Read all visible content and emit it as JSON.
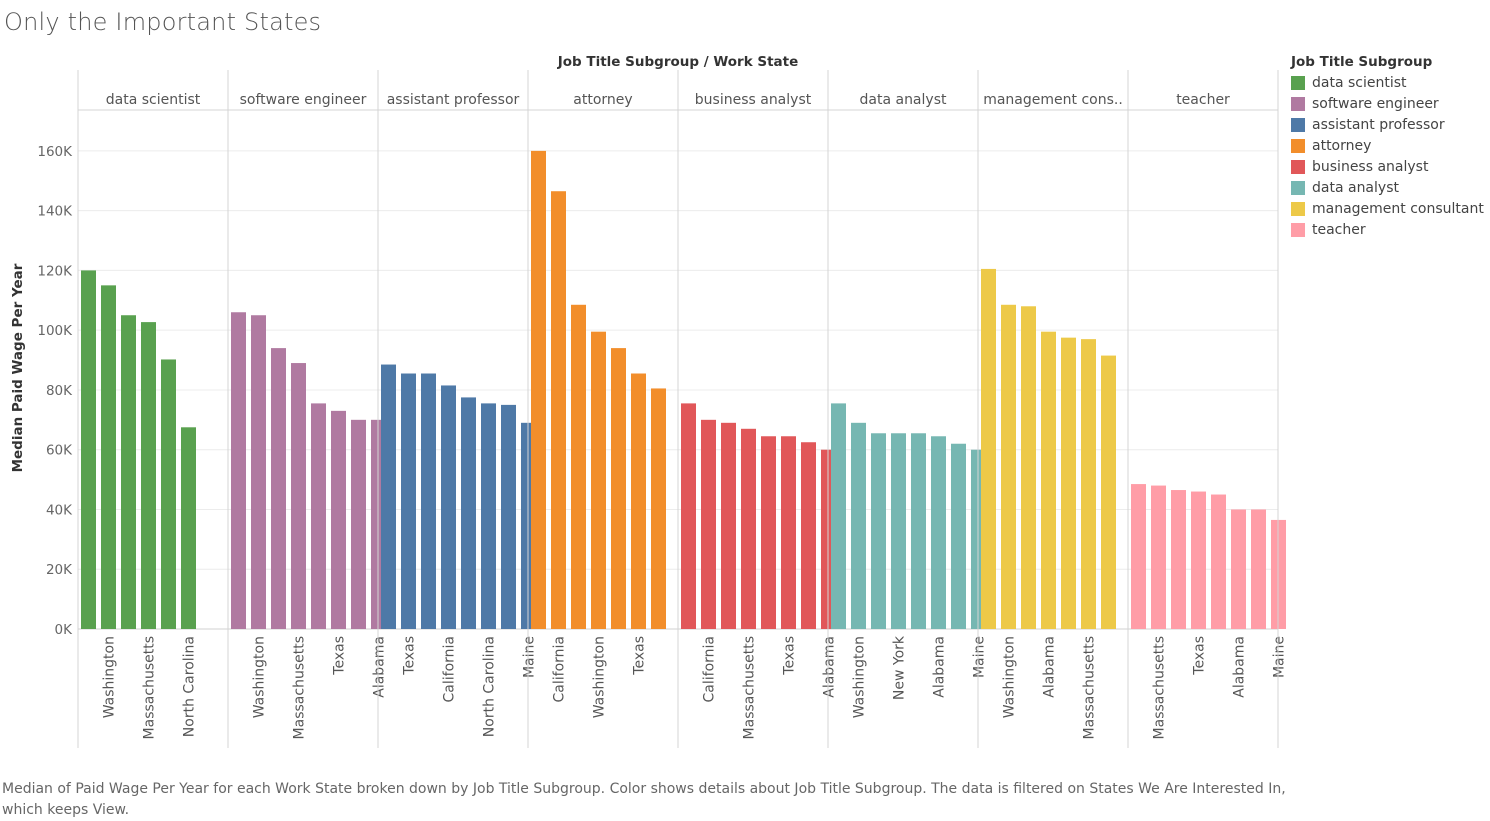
{
  "title": "Only the Important States",
  "caption": "Median of Paid Wage Per Year for each Work State broken down by Job Title Subgroup.  Color shows details about Job Title Subgroup. The data is filtered on States We Are Interested In, which keeps View.",
  "legend": {
    "title": "Job Title Subgroup",
    "items": [
      {
        "label": "data scientist",
        "color": "#59a14f"
      },
      {
        "label": "software engineer",
        "color": "#b07aa1"
      },
      {
        "label": "assistant professor",
        "color": "#4e79a7"
      },
      {
        "label": "attorney",
        "color": "#f28e2b"
      },
      {
        "label": "business analyst",
        "color": "#e15759"
      },
      {
        "label": "data analyst",
        "color": "#76b7b2"
      },
      {
        "label": "management consultant",
        "color": "#edc948"
      },
      {
        "label": "teacher",
        "color": "#ff9da7"
      }
    ]
  },
  "chart_data": {
    "type": "bar",
    "title": "Job Title Subgroup  /  Work State",
    "ylabel": "Median Paid Wage Per Year",
    "ylim": [
      0,
      170000
    ],
    "yticks": [
      "0K",
      "20K",
      "40K",
      "60K",
      "80K",
      "100K",
      "120K",
      "140K",
      "160K"
    ],
    "grid": true,
    "legend_position": "right",
    "groups": [
      {
        "name": "data scientist",
        "header": "data scientist",
        "color": "#59a14f",
        "values": [
          120000,
          115000,
          105000,
          102700,
          90200,
          67500
        ],
        "labels": [
          "",
          "Washington",
          "",
          "Massachusetts",
          "",
          "North Carolina"
        ]
      },
      {
        "name": "software engineer",
        "header": "software engineer",
        "color": "#b07aa1",
        "values": [
          106000,
          105000,
          94000,
          89000,
          75500,
          73000,
          70000,
          70000
        ],
        "labels": [
          "",
          "Washington",
          "",
          "Massachusetts",
          "",
          "Texas",
          "",
          "Alabama"
        ]
      },
      {
        "name": "assistant professor",
        "header": "assistant professor",
        "color": "#4e79a7",
        "values": [
          88500,
          85500,
          85500,
          81500,
          77500,
          75500,
          75000,
          69000
        ],
        "labels": [
          "",
          "Texas",
          "",
          "California",
          "",
          "North Carolina",
          "",
          "Maine"
        ]
      },
      {
        "name": "attorney",
        "header": "attorney",
        "color": "#f28e2b",
        "values": [
          160000,
          146500,
          108500,
          99500,
          94000,
          85500,
          80500
        ],
        "labels": [
          "",
          "California",
          "",
          "Washington",
          "",
          "Texas",
          ""
        ]
      },
      {
        "name": "business analyst",
        "header": "business analyst",
        "color": "#e15759",
        "values": [
          75500,
          70000,
          69000,
          67000,
          64500,
          64500,
          62500,
          60000
        ],
        "labels": [
          "",
          "California",
          "",
          "Massachusetts",
          "",
          "Texas",
          "",
          "Alabama"
        ]
      },
      {
        "name": "data analyst",
        "header": "data analyst",
        "color": "#76b7b2",
        "values": [
          75500,
          69000,
          65500,
          65500,
          65500,
          64500,
          62000,
          60000
        ],
        "labels": [
          "",
          "Washington",
          "",
          "New York",
          "",
          "Alabama",
          "",
          "Maine"
        ]
      },
      {
        "name": "management consultant",
        "header": "management cons..",
        "color": "#edc948",
        "values": [
          120500,
          108500,
          108000,
          99500,
          97500,
          97000,
          91500
        ],
        "labels": [
          "",
          "Washington",
          "",
          "Alabama",
          "",
          "Massachusetts",
          ""
        ]
      },
      {
        "name": "teacher",
        "header": "teacher",
        "color": "#ff9da7",
        "values": [
          48500,
          48000,
          46500,
          46000,
          45000,
          40000,
          40000,
          36500
        ],
        "labels": [
          "",
          "Massachusetts",
          "",
          "Texas",
          "",
          "Alabama",
          "",
          "Maine"
        ]
      }
    ]
  }
}
